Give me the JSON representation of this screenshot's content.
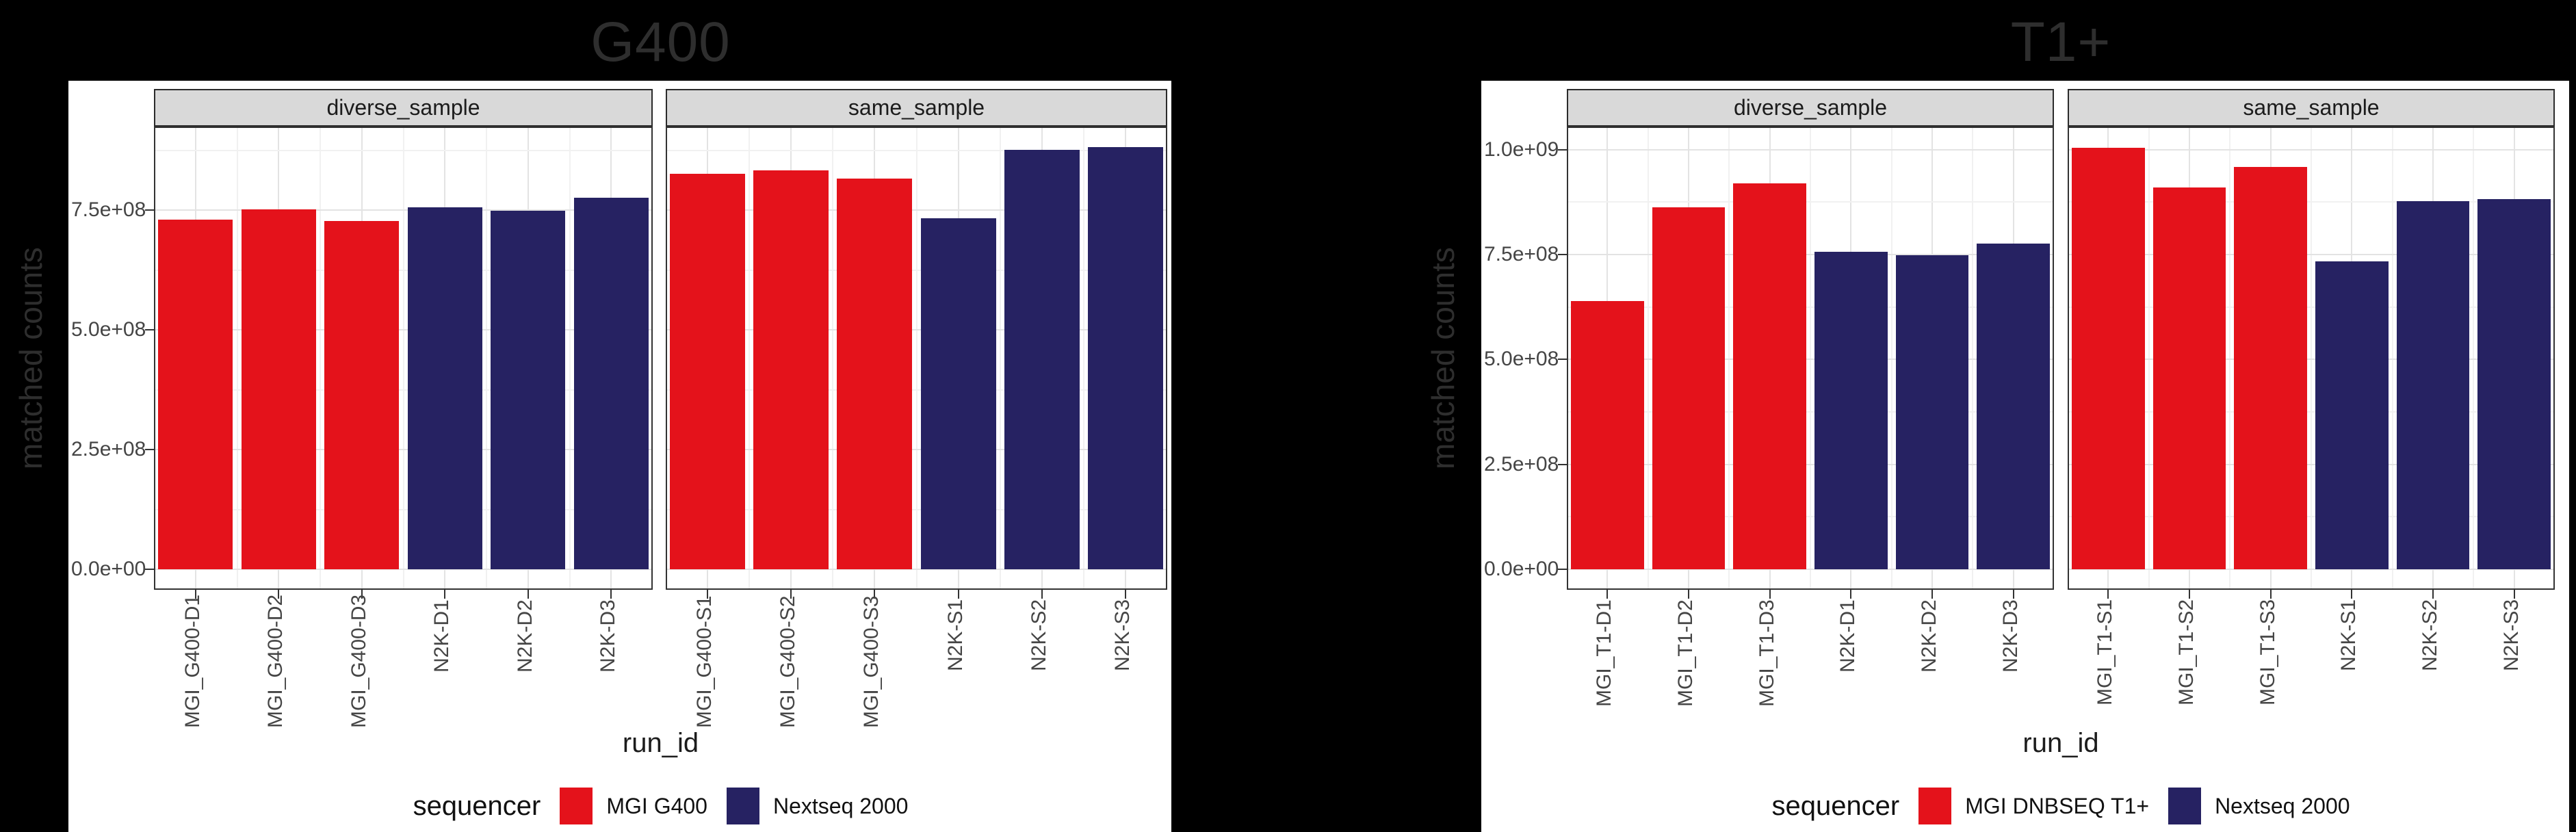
{
  "page": {
    "background": "#000000",
    "card_background": "#ffffff"
  },
  "colors": {
    "bar_red": "#e4121b",
    "bar_navy": "#262262",
    "strip_background": "#d9d9d9",
    "panel_border": "#333333",
    "grid_major": "#e3e3e3",
    "grid_minor": "#f1f1f1",
    "axis_text": "#454545",
    "outer_text": "#2e2e2e"
  },
  "chart_data": [
    {
      "type": "bar",
      "title": "G400",
      "xlabel": "run_id",
      "ylabel": "matched counts",
      "ylim": [
        0,
        925000000
      ],
      "grid": true,
      "legend": {
        "title": "sequencer",
        "position": "bottom",
        "items": [
          {
            "label": "MGI G400",
            "color": "#e4121b"
          },
          {
            "label": "Nextseq 2000",
            "color": "#262262"
          }
        ]
      },
      "yticks": [
        {
          "label": "0.0e+00",
          "value": 0
        },
        {
          "label": "2.5e+08",
          "value": 250000000
        },
        {
          "label": "5.0e+08",
          "value": 500000000
        },
        {
          "label": "7.5e+08",
          "value": 750000000
        }
      ],
      "facets": [
        {
          "label": "diverse_sample",
          "categories": [
            "MGI_G400-D1",
            "MGI_G400-D2",
            "MGI_G400-D3",
            "N2K-D1",
            "N2K-D2",
            "N2K-D3"
          ],
          "values": [
            730000000,
            752000000,
            727000000,
            757000000,
            749000000,
            776000000
          ],
          "series": [
            "MGI G400",
            "MGI G400",
            "MGI G400",
            "Nextseq 2000",
            "Nextseq 2000",
            "Nextseq 2000"
          ]
        },
        {
          "label": "same_sample",
          "categories": [
            "MGI_G400-S1",
            "MGI_G400-S2",
            "MGI_G400-S3",
            "N2K-S1",
            "N2K-S2",
            "N2K-S3"
          ],
          "values": [
            827000000,
            833000000,
            817000000,
            733000000,
            877000000,
            882000000
          ],
          "series": [
            "MGI G400",
            "MGI G400",
            "MGI G400",
            "Nextseq 2000",
            "Nextseq 2000",
            "Nextseq 2000"
          ]
        }
      ]
    },
    {
      "type": "bar",
      "title": "T1+",
      "xlabel": "run_id",
      "ylabel": "matched counts",
      "ylim": [
        0,
        1055000000
      ],
      "grid": true,
      "legend": {
        "title": "sequencer",
        "position": "bottom",
        "items": [
          {
            "label": "MGI DNBSEQ T1+",
            "color": "#e4121b"
          },
          {
            "label": "Nextseq 2000",
            "color": "#262262"
          }
        ]
      },
      "yticks": [
        {
          "label": "0.0e+00",
          "value": 0
        },
        {
          "label": "2.5e+08",
          "value": 250000000
        },
        {
          "label": "5.0e+08",
          "value": 500000000
        },
        {
          "label": "7.5e+08",
          "value": 750000000
        },
        {
          "label": "1.0e+09",
          "value": 1000000000
        }
      ],
      "facets": [
        {
          "label": "diverse_sample",
          "categories": [
            "MGI_T1-D1",
            "MGI_T1-D2",
            "MGI_T1-D3",
            "N2K-D1",
            "N2K-D2",
            "N2K-D3"
          ],
          "values": [
            640000000,
            862000000,
            920000000,
            757000000,
            749000000,
            776000000
          ],
          "series": [
            "MGI DNBSEQ T1+",
            "MGI DNBSEQ T1+",
            "MGI DNBSEQ T1+",
            "Nextseq 2000",
            "Nextseq 2000",
            "Nextseq 2000"
          ]
        },
        {
          "label": "same_sample",
          "categories": [
            "MGI_T1-S1",
            "MGI_T1-S2",
            "MGI_T1-S3",
            "N2K-S1",
            "N2K-S2",
            "N2K-S3"
          ],
          "values": [
            1005000000,
            910000000,
            958000000,
            733000000,
            877000000,
            882000000
          ],
          "series": [
            "MGI DNBSEQ T1+",
            "MGI DNBSEQ T1+",
            "MGI DNBSEQ T1+",
            "Nextseq 2000",
            "Nextseq 2000",
            "Nextseq 2000"
          ]
        }
      ]
    }
  ]
}
